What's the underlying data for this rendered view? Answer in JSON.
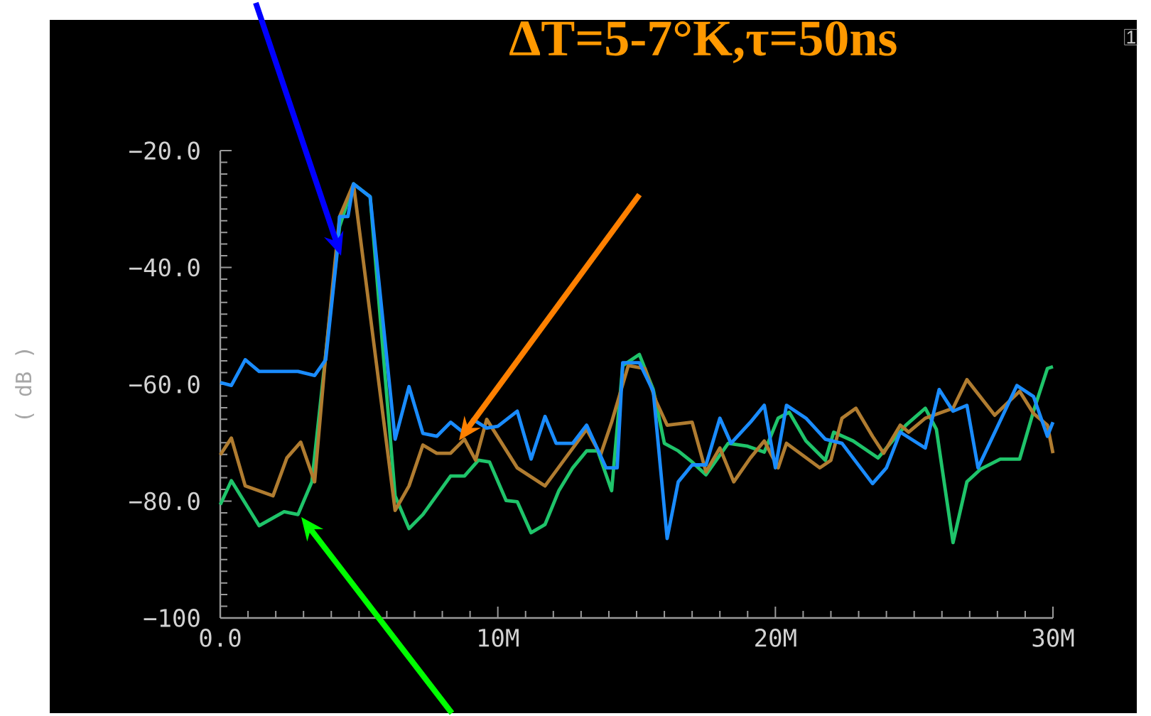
{
  "chart_data": {
    "type": "line",
    "title": "ΔT=5-7°K,τ=50ns",
    "ylabel": "( dB )",
    "xlim": [
      0,
      30
    ],
    "ylim": [
      -100,
      -20
    ],
    "xticks": [
      {
        "value": 0,
        "label": "0.0"
      },
      {
        "value": 10,
        "label": "10M"
      },
      {
        "value": 20,
        "label": "20M"
      },
      {
        "value": 30,
        "label": "30M"
      }
    ],
    "yticks": [
      {
        "value": -100,
        "label": "−100"
      },
      {
        "value": -80,
        "label": "−80.0"
      },
      {
        "value": -60,
        "label": "−60.0"
      },
      {
        "value": -40,
        "label": "−40.0"
      },
      {
        "value": -20,
        "label": "−20.0"
      }
    ],
    "line_style": "solid",
    "annotations": [
      "1"
    ],
    "series": [
      {
        "color": "#1fc46a",
        "x": [
          0,
          0.4,
          1.4,
          2.3,
          2.8,
          3.3,
          3.8,
          4.3,
          4.8,
          5.4,
          6.3,
          6.8,
          7.3,
          8.3,
          8.8,
          9.3,
          9.7,
          10.3,
          10.7,
          11.2,
          11.7,
          12.2,
          12.7,
          13.2,
          13.6,
          14.1,
          14.5,
          15.1,
          15.6,
          16.0,
          16.5,
          17.0,
          17.5,
          18.3,
          19.0,
          19.6,
          20.1,
          20.5,
          21.1,
          21.8,
          22.1,
          22.8,
          23.7,
          24.7,
          25.4,
          25.8,
          26.4,
          26.9,
          27.4,
          28.1,
          28.8,
          29.3,
          29.8,
          30
        ],
        "values": [
          -80.6,
          -76.5,
          -84.2,
          -81.8,
          -82.3,
          -76.7,
          -54.9,
          -33,
          -25.7,
          -27.9,
          -79.1,
          -84.7,
          -82.3,
          -75.7,
          -75.7,
          -73,
          -73.3,
          -79.9,
          -80.1,
          -85.4,
          -84,
          -78.2,
          -74.3,
          -71.4,
          -71.4,
          -78.2,
          -56.8,
          -54.9,
          -60.9,
          -70.1,
          -71.4,
          -73.3,
          -75.5,
          -70.1,
          -70.6,
          -71.6,
          -65.8,
          -64.8,
          -69.7,
          -73,
          -68.2,
          -69.7,
          -72.6,
          -67,
          -64.1,
          -67.7,
          -87.1,
          -76.7,
          -74.5,
          -72.8,
          -72.8,
          -64.6,
          -57.3,
          -57
        ]
      },
      {
        "color": "#b07c30",
        "x": [
          0,
          0.4,
          0.9,
          1.9,
          2.4,
          2.9,
          3.4,
          3.8,
          4.3,
          4.8,
          5.4,
          6.3,
          6.8,
          7.3,
          7.8,
          8.3,
          8.8,
          9.2,
          9.6,
          10.7,
          11.7,
          13.2,
          13.7,
          14.1,
          14.7,
          15.3,
          15.7,
          16.1,
          17.0,
          17.5,
          18.0,
          18.5,
          19.1,
          19.6,
          20.1,
          20.4,
          21.6,
          22.0,
          22.4,
          22.9,
          23.5,
          23.9,
          24.5,
          24.8,
          25.4,
          26.4,
          26.9,
          27.9,
          28.8,
          29.3,
          29.8,
          30
        ],
        "values": [
          -72.1,
          -69.2,
          -77.4,
          -79.1,
          -72.6,
          -69.9,
          -76.7,
          -54.9,
          -31.3,
          -25.7,
          null,
          -81.6,
          -77.4,
          -70.4,
          -71.8,
          -71.8,
          -69.4,
          -73,
          -66,
          -74.3,
          -77.4,
          -67.7,
          -72.1,
          -66.5,
          -56.8,
          -57.3,
          -62.9,
          -67,
          -66.5,
          -75,
          -70.9,
          -76.7,
          -72.6,
          -69.7,
          -74.3,
          -70.1,
          -74.3,
          -73,
          -65.8,
          -64.1,
          -68.9,
          -71.8,
          -67,
          -68.2,
          -65.8,
          -64.1,
          -59.2,
          -65.3,
          -61.2,
          -65,
          -67,
          -71.8
        ]
      },
      {
        "color": "#1a8cff",
        "x": [
          0,
          0.4,
          0.9,
          1.4,
          2.8,
          3.4,
          3.8,
          4.2,
          4.3,
          4.6,
          4.8,
          5.4,
          6.3,
          6.8,
          7.3,
          7.8,
          8.3,
          8.8,
          9.1,
          9.6,
          10.0,
          10.7,
          11.2,
          11.7,
          12.1,
          12.7,
          13.2,
          13.9,
          14.3,
          14.5,
          15.1,
          15.6,
          16.1,
          16.5,
          17.0,
          17.5,
          18.0,
          18.4,
          19.1,
          19.6,
          20.0,
          20.4,
          21.1,
          21.8,
          22.4,
          23.5,
          24.0,
          24.5,
          25.4,
          25.9,
          26.4,
          26.9,
          27.3,
          28.7,
          29.3,
          29.8,
          30
        ],
        "values": [
          -59.7,
          -60.2,
          -55.8,
          -57.8,
          -57.8,
          -58.5,
          -55.8,
          -38,
          -31.3,
          -31.3,
          -25.7,
          -27.9,
          -69.4,
          -60.4,
          -68.4,
          -68.9,
          -66.5,
          -68.4,
          -66,
          -67.5,
          -67.2,
          -64.6,
          -72.8,
          -65.5,
          -70.1,
          -70.1,
          -67,
          -74.3,
          -74.3,
          -56.3,
          -56.3,
          -61.2,
          -86.4,
          -76.7,
          -73.8,
          -73.8,
          -65.8,
          -70.1,
          -66.5,
          -63.6,
          -74.3,
          -63.6,
          -65.8,
          -69.4,
          -70.1,
          -77,
          -74.3,
          -68.2,
          -70.9,
          -60.9,
          -64.6,
          -63.6,
          -74.3,
          -60.2,
          -62.1,
          -68.9,
          -66.5
        ]
      }
    ]
  }
}
